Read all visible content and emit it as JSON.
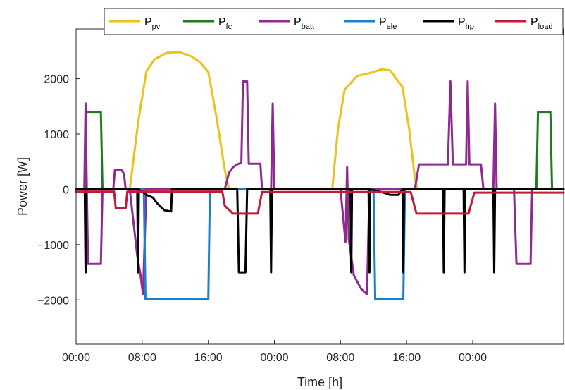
{
  "chart_data": {
    "type": "line",
    "xlabel": "Time [h]",
    "ylabel": "Power [W]",
    "xlim": [
      0,
      59
    ],
    "ylim": [
      -2800,
      2900
    ],
    "x_ticks": [
      0,
      8,
      16,
      24,
      32,
      40,
      48
    ],
    "x_tick_labels": [
      "00:00",
      "08:00",
      "16:00",
      "00:00",
      "08:00",
      "16:00",
      "00:00"
    ],
    "y_ticks": [
      -2000,
      -1000,
      0,
      1000,
      2000
    ],
    "y_tick_labels": [
      "−2000",
      "−1000",
      "0",
      "1000",
      "2000"
    ],
    "grid": false,
    "legend_placement": "top-right",
    "series": [
      {
        "name": "P_pv",
        "label_main": "P",
        "label_sub": "pv",
        "color": "#EDC01A",
        "points": [
          [
            0,
            0
          ],
          [
            6.5,
            0
          ],
          [
            7.5,
            1200
          ],
          [
            8.5,
            2130
          ],
          [
            9.5,
            2350
          ],
          [
            11,
            2470
          ],
          [
            12.5,
            2480
          ],
          [
            14,
            2400
          ],
          [
            15,
            2300
          ],
          [
            16,
            2120
          ],
          [
            17,
            1300
          ],
          [
            18,
            350
          ],
          [
            18.5,
            0
          ],
          [
            31,
            0
          ],
          [
            31.7,
            1100
          ],
          [
            32.5,
            1800
          ],
          [
            34,
            2050
          ],
          [
            35.5,
            2100
          ],
          [
            37,
            2170
          ],
          [
            38,
            2150
          ],
          [
            39.5,
            1850
          ],
          [
            40.3,
            1100
          ],
          [
            41,
            200
          ],
          [
            41.3,
            0
          ],
          [
            59,
            0
          ]
        ]
      },
      {
        "name": "P_fc",
        "label_main": "P",
        "label_sub": "fc",
        "color": "#1F7A1F",
        "points": [
          [
            0,
            0
          ],
          [
            1.1,
            0
          ],
          [
            1.25,
            1400
          ],
          [
            3,
            1400
          ],
          [
            3.2,
            0
          ],
          [
            55.7,
            0
          ],
          [
            55.9,
            1400
          ],
          [
            57.4,
            1400
          ],
          [
            57.6,
            0
          ],
          [
            59,
            0
          ]
        ]
      },
      {
        "name": "P_batt",
        "label_main": "P",
        "label_sub": "batt",
        "color": "#8E2A92",
        "points": [
          [
            0,
            0
          ],
          [
            1,
            0
          ],
          [
            1.15,
            1550
          ],
          [
            1.3,
            0
          ],
          [
            1.45,
            -1350
          ],
          [
            3,
            -1350
          ],
          [
            3.2,
            0
          ],
          [
            4.5,
            0
          ],
          [
            4.7,
            350
          ],
          [
            5.5,
            350
          ],
          [
            5.8,
            280
          ],
          [
            6,
            0
          ],
          [
            6.5,
            0
          ],
          [
            7.4,
            -1200
          ],
          [
            7.8,
            -1550
          ],
          [
            8.1,
            -1900
          ],
          [
            8.5,
            0
          ],
          [
            18,
            0
          ],
          [
            18.5,
            300
          ],
          [
            19,
            400
          ],
          [
            19.5,
            450
          ],
          [
            20,
            480
          ],
          [
            20.2,
            1950
          ],
          [
            20.7,
            1950
          ],
          [
            20.9,
            460
          ],
          [
            22.3,
            460
          ],
          [
            22.5,
            0
          ],
          [
            23.6,
            0
          ],
          [
            23.8,
            1550
          ],
          [
            24,
            0
          ],
          [
            31.5,
            0
          ],
          [
            32,
            0
          ],
          [
            32.6,
            -950
          ],
          [
            32.8,
            400
          ],
          [
            33,
            -900
          ],
          [
            33.6,
            -1550
          ],
          [
            34.5,
            -1800
          ],
          [
            35.2,
            -1900
          ],
          [
            35.5,
            0
          ],
          [
            41,
            0
          ],
          [
            41.5,
            450
          ],
          [
            45,
            450
          ],
          [
            45.3,
            1950
          ],
          [
            45.6,
            450
          ],
          [
            47.2,
            450
          ],
          [
            47.4,
            1950
          ],
          [
            47.6,
            450
          ],
          [
            49,
            450
          ],
          [
            49.3,
            0
          ],
          [
            50.5,
            0
          ],
          [
            50.7,
            1550
          ],
          [
            50.9,
            0
          ],
          [
            51.5,
            0
          ],
          [
            53,
            0
          ],
          [
            53.3,
            -1350
          ],
          [
            55,
            -1350
          ],
          [
            55.2,
            0
          ],
          [
            59,
            0
          ]
        ]
      },
      {
        "name": "P_ele",
        "label_main": "P",
        "label_sub": "ele",
        "color": "#1A7FCF",
        "points": [
          [
            0,
            0
          ],
          [
            8.2,
            0
          ],
          [
            8.4,
            -1990
          ],
          [
            16,
            -1990
          ],
          [
            16.2,
            0
          ],
          [
            36,
            0
          ],
          [
            36.2,
            -1990
          ],
          [
            39.6,
            -1990
          ],
          [
            39.8,
            0
          ],
          [
            59,
            0
          ]
        ]
      },
      {
        "name": "P_hp",
        "label_main": "P",
        "label_sub": "hp",
        "color": "#000000",
        "points": [
          [
            0,
            0
          ],
          [
            1.05,
            0
          ],
          [
            1.15,
            -1500
          ],
          [
            1.25,
            0
          ],
          [
            7.4,
            0
          ],
          [
            7.5,
            -1500
          ],
          [
            7.6,
            0
          ],
          [
            8.5,
            -100
          ],
          [
            9.3,
            -150
          ],
          [
            9.8,
            -250
          ],
          [
            10.7,
            -380
          ],
          [
            11.5,
            -400
          ],
          [
            11.6,
            0
          ],
          [
            19.5,
            0
          ],
          [
            19.7,
            -1500
          ],
          [
            20.5,
            -1500
          ],
          [
            20.7,
            0
          ],
          [
            23.5,
            0
          ],
          [
            23.6,
            -1500
          ],
          [
            23.7,
            0
          ],
          [
            33.2,
            0
          ],
          [
            33.3,
            -1500
          ],
          [
            33.4,
            0
          ],
          [
            35.4,
            0
          ],
          [
            35.5,
            -1500
          ],
          [
            35.6,
            0
          ],
          [
            37,
            -50
          ],
          [
            38,
            -100
          ],
          [
            39,
            -100
          ],
          [
            39.5,
            0
          ],
          [
            39.6,
            -1500
          ],
          [
            39.7,
            0
          ],
          [
            44.4,
            0
          ],
          [
            44.5,
            -1500
          ],
          [
            44.6,
            0
          ],
          [
            46.9,
            0
          ],
          [
            47,
            -1500
          ],
          [
            47.1,
            0
          ],
          [
            50.5,
            0
          ],
          [
            50.6,
            -1500
          ],
          [
            50.7,
            0
          ],
          [
            59,
            0
          ]
        ]
      },
      {
        "name": "P_load",
        "label_main": "P",
        "label_sub": "load",
        "color": "#C11B37",
        "points": [
          [
            0,
            -40
          ],
          [
            4.6,
            -40
          ],
          [
            4.8,
            -340
          ],
          [
            6,
            -340
          ],
          [
            6.2,
            -40
          ],
          [
            17.7,
            -40
          ],
          [
            18,
            -300
          ],
          [
            19,
            -440
          ],
          [
            22,
            -440
          ],
          [
            22.5,
            -50
          ],
          [
            40.5,
            -50
          ],
          [
            41.2,
            -440
          ],
          [
            46.5,
            -440
          ],
          [
            47.5,
            -440
          ],
          [
            48.2,
            -60
          ],
          [
            59,
            -60
          ]
        ]
      }
    ]
  }
}
